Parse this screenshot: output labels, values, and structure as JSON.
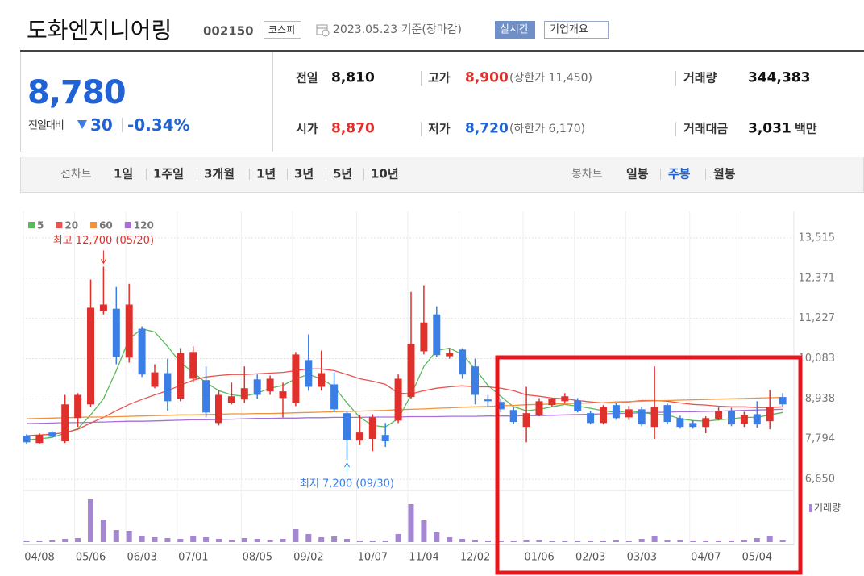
{
  "header": {
    "title": "도화엔지니어링",
    "code": "002150",
    "market": "코스피",
    "date": "2023.05.23 기준(장마감)",
    "realtime": "실시간",
    "overview": "기업개요"
  },
  "summary": {
    "price": "8,780",
    "change_label": "전일대비",
    "change": "30",
    "change_rate": "-0.34%"
  },
  "stats": [
    {
      "label": "전일",
      "value": "8,810"
    },
    {
      "label": "고가",
      "value": "8,900",
      "note": "(상한가 11,450)"
    },
    {
      "label": "거래량",
      "value": "344,383"
    },
    {
      "label": "시가",
      "value": "8,870"
    },
    {
      "label": "저가",
      "value": "8,720",
      "note": "(하한가 6,170)"
    },
    {
      "label": "거래대금",
      "value": "3,031",
      "unit": "백만"
    }
  ],
  "tabs": {
    "line_chart": {
      "label": "선차트",
      "periods": [
        "1일",
        "1주일",
        "3개월",
        "1년",
        "3년",
        "5년",
        "10년"
      ]
    },
    "candle_chart": {
      "label": "봉차트",
      "periods": [
        "일봉",
        "주봉",
        "월봉"
      ],
      "selected_index": 1
    }
  },
  "chart_data": {
    "type": "candlestick",
    "categories": [
      "04/08",
      null,
      null,
      null,
      "05/06",
      null,
      null,
      null,
      "06/03",
      null,
      null,
      null,
      "07/01",
      null,
      null,
      null,
      null,
      "08/05",
      null,
      null,
      null,
      "09/02",
      null,
      null,
      null,
      null,
      "10/07",
      null,
      null,
      null,
      "11/04",
      null,
      null,
      null,
      "12/02",
      null,
      null,
      null,
      null,
      "01/06",
      null,
      null,
      null,
      "02/03",
      null,
      null,
      null,
      "03/03",
      null,
      null,
      null,
      null,
      "04/07",
      null,
      null,
      null,
      "05/04",
      null,
      null,
      null
    ],
    "open": [
      7890,
      7680,
      7980,
      7730,
      8390,
      8780,
      11430,
      11500,
      10110,
      10930,
      9280,
      9670,
      8940,
      9510,
      9470,
      8250,
      8820,
      8920,
      9490,
      9150,
      8960,
      8820,
      10040,
      9280,
      9350,
      8530,
      7750,
      7800,
      7910,
      8320,
      8990,
      10290,
      11340,
      10150,
      10340,
      9860,
      8920,
      8850,
      8620,
      8140,
      8480,
      8760,
      8870,
      8890,
      8530,
      8250,
      8760,
      8410,
      8640,
      8140,
      8760,
      8390,
      8250,
      8140,
      8370,
      8600,
      8230,
      8500,
      8300,
      8990
    ],
    "high": [
      7930,
      7960,
      8020,
      9050,
      9100,
      12330,
      12700,
      12120,
      12210,
      11000,
      9920,
      10080,
      10380,
      10430,
      9860,
      9170,
      9400,
      9860,
      9630,
      9600,
      9400,
      10270,
      10770,
      10310,
      9690,
      8600,
      8480,
      8500,
      8250,
      9630,
      11980,
      12170,
      11570,
      10380,
      10380,
      10080,
      9050,
      8940,
      8710,
      9280,
      8960,
      8960,
      9100,
      8960,
      8600,
      8760,
      8820,
      8730,
      8710,
      9860,
      8800,
      8460,
      8320,
      8440,
      8690,
      8690,
      8570,
      8870,
      9190,
      9100
    ],
    "low": [
      7660,
      7660,
      7840,
      7680,
      8140,
      8710,
      11340,
      9920,
      9970,
      9560,
      9240,
      8600,
      8870,
      9400,
      8410,
      8180,
      8780,
      8820,
      8940,
      9050,
      8410,
      8730,
      9170,
      9170,
      8550,
      7200,
      7640,
      7450,
      7570,
      8250,
      8940,
      10200,
      10130,
      10080,
      9510,
      8780,
      8710,
      8550,
      8230,
      7700,
      8440,
      8710,
      8820,
      8550,
      8210,
      8210,
      8340,
      8340,
      8160,
      7800,
      8210,
      8090,
      8090,
      7960,
      8320,
      8160,
      8140,
      8120,
      8070,
      8720
    ],
    "close": [
      7700,
      7910,
      7860,
      8780,
      9050,
      11530,
      11620,
      10130,
      11620,
      9630,
      9690,
      8870,
      10240,
      10270,
      8550,
      9050,
      9010,
      9240,
      9050,
      9510,
      9150,
      10200,
      9280,
      9670,
      8640,
      7770,
      7980,
      8410,
      7730,
      9510,
      10500,
      11110,
      10180,
      10240,
      9630,
      9050,
      8870,
      8640,
      8280,
      8530,
      8870,
      8940,
      9010,
      8600,
      8250,
      8710,
      8390,
      8640,
      8210,
      8710,
      8280,
      8140,
      8140,
      8390,
      8600,
      8210,
      8480,
      8210,
      8710,
      8780
    ],
    "up_color": "#e0302c",
    "down_color": "#3a7ee6",
    "series": [
      {
        "name": "5",
        "color": "#5cb85c",
        "values": [
          7770,
          7800,
          7840,
          7960,
          8090,
          8480,
          8940,
          9740,
          10650,
          10930,
          10840,
          10430,
          9970,
          9690,
          9400,
          9170,
          9050,
          9010,
          9100,
          9240,
          9320,
          9510,
          9630,
          9510,
          9280,
          8820,
          8410,
          8180,
          8140,
          8370,
          9050,
          9860,
          10310,
          10380,
          10200,
          9790,
          9320,
          9010,
          8710,
          8600,
          8640,
          8710,
          8780,
          8730,
          8670,
          8600,
          8550,
          8600,
          8550,
          8500,
          8480,
          8370,
          8320,
          8300,
          8340,
          8370,
          8410,
          8410,
          8480,
          8550
        ]
      },
      {
        "name": "20",
        "color": "#e8544f",
        "values": [
          7890,
          7910,
          7930,
          7980,
          8070,
          8250,
          8410,
          8600,
          8780,
          8920,
          9050,
          9170,
          9320,
          9470,
          9560,
          9600,
          9630,
          9630,
          9650,
          9670,
          9690,
          9740,
          9790,
          9790,
          9740,
          9630,
          9510,
          9440,
          9350,
          9100,
          9080,
          9170,
          9240,
          9280,
          9310,
          9280,
          9280,
          9240,
          9170,
          9050,
          9010,
          8960,
          8940,
          8890,
          8850,
          8820,
          8820,
          8850,
          8890,
          8890,
          8870,
          8820,
          8780,
          8760,
          8730,
          8710,
          8710,
          8690,
          8690,
          8710
        ]
      },
      {
        "name": "60",
        "color": "#f0923a",
        "values": [
          8370,
          8380,
          8390,
          8400,
          8410,
          8420,
          8420,
          8430,
          8440,
          8450,
          8460,
          8470,
          8480,
          8480,
          8490,
          8500,
          8510,
          8510,
          8520,
          8520,
          8530,
          8540,
          8550,
          8560,
          8570,
          8580,
          8590,
          8600,
          8610,
          8630,
          8640,
          8650,
          8670,
          8680,
          8700,
          8710,
          8720,
          8740,
          8750,
          8770,
          8780,
          8790,
          8800,
          8810,
          8820,
          8830,
          8850,
          8860,
          8870,
          8880,
          8890,
          8900,
          8910,
          8920,
          8930,
          8940,
          8950,
          8960,
          8970,
          8980
        ]
      },
      {
        "name": "120",
        "color": "#a86fd8",
        "values": [
          8230,
          8240,
          8250,
          8260,
          8260,
          8270,
          8280,
          8290,
          8300,
          8300,
          8310,
          8320,
          8330,
          8340,
          8340,
          8350,
          8360,
          8370,
          8380,
          8380,
          8390,
          8390,
          8400,
          8400,
          8410,
          8410,
          8410,
          8420,
          8420,
          8420,
          8430,
          8430,
          8430,
          8440,
          8440,
          8440,
          8450,
          8450,
          8450,
          8460,
          8460,
          8470,
          8480,
          8490,
          8500,
          8510,
          8520,
          8530,
          8540,
          8550,
          8560,
          8570,
          8570,
          8580,
          8590,
          8600,
          8610,
          8620,
          8630,
          8640
        ]
      }
    ],
    "volume_name": "거래량",
    "volume_color": "#a487d0",
    "volume": [
      200000,
      200000,
      300000,
      400000,
      500000,
      5300000,
      2800000,
      1500000,
      1400000,
      800000,
      600000,
      500000,
      400000,
      800000,
      600000,
      400000,
      300000,
      500000,
      400000,
      300000,
      400000,
      1600000,
      1000000,
      600000,
      700000,
      400000,
      200000,
      200000,
      200000,
      1000000,
      4700000,
      2700000,
      1200000,
      600000,
      400000,
      300000,
      200000,
      200000,
      200000,
      300000,
      300000,
      200000,
      200000,
      200000,
      200000,
      200000,
      300000,
      200000,
      400000,
      800000,
      300000,
      300000,
      200000,
      200000,
      200000,
      200000,
      300000,
      500000,
      800000,
      300000
    ],
    "volume_ylim": [
      0,
      5500000
    ],
    "ylim": [
      6400,
      14270
    ],
    "yticks": [
      {
        "value": 13515,
        "label": "13,515"
      },
      {
        "value": 12371,
        "label": "12,371"
      },
      {
        "value": 11227,
        "label": "11,227"
      },
      {
        "value": 10083,
        "label": "10,083"
      },
      {
        "value": 8938,
        "label": "8,938"
      },
      {
        "value": 7794,
        "label": "7,794"
      },
      {
        "value": 6650,
        "label": "6,650"
      }
    ],
    "grid": true,
    "annotations": [
      {
        "text": "최고 12,700 (05/20)",
        "index": 6,
        "at": "high",
        "color": "#e0302c"
      },
      {
        "text": "최저 7,200 (09/30)",
        "index": 25,
        "at": "low",
        "color": "#3a7ee6"
      }
    ]
  }
}
